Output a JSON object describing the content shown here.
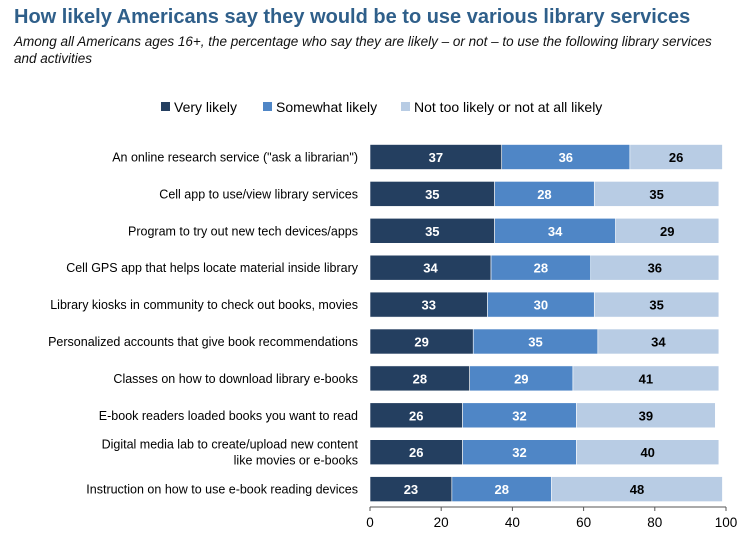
{
  "title": "How likely Americans say they would be to use various library services",
  "subtitle": "Among all Americans ages 16+, the percentage who say they are likely – or not – to use the following library services and activities",
  "colors": {
    "very": "#243f60",
    "somewhat": "#4f86c6",
    "not": "#b8cce4"
  },
  "chart_data": {
    "type": "bar",
    "orientation": "horizontal",
    "stacked": true,
    "legend_position": "top",
    "xlim": [
      0,
      100
    ],
    "xticks": [
      0,
      20,
      40,
      60,
      80,
      100
    ],
    "categories": [
      "An online research service (\"ask a librarian\")",
      "Cell app to use/view library services",
      "Program to try out new tech devices/apps",
      "Cell GPS app that helps locate material inside library",
      "Library kiosks in community to check out books, movies",
      "Personalized accounts that give book recommendations",
      "Classes on how to download library e-books",
      "E-book readers loaded books you want to read",
      "Digital media lab to create/upload new content like movies or e-books",
      "Instruction on how to use e-book reading devices"
    ],
    "series": [
      {
        "name": "Very likely",
        "values": [
          37,
          35,
          35,
          34,
          33,
          29,
          28,
          26,
          26,
          23
        ]
      },
      {
        "name": "Somewhat likely",
        "values": [
          36,
          28,
          34,
          28,
          30,
          35,
          29,
          32,
          32,
          28
        ]
      },
      {
        "name": "Not too likely or not at all likely",
        "values": [
          26,
          35,
          29,
          36,
          35,
          34,
          41,
          39,
          40,
          48
        ]
      }
    ]
  }
}
